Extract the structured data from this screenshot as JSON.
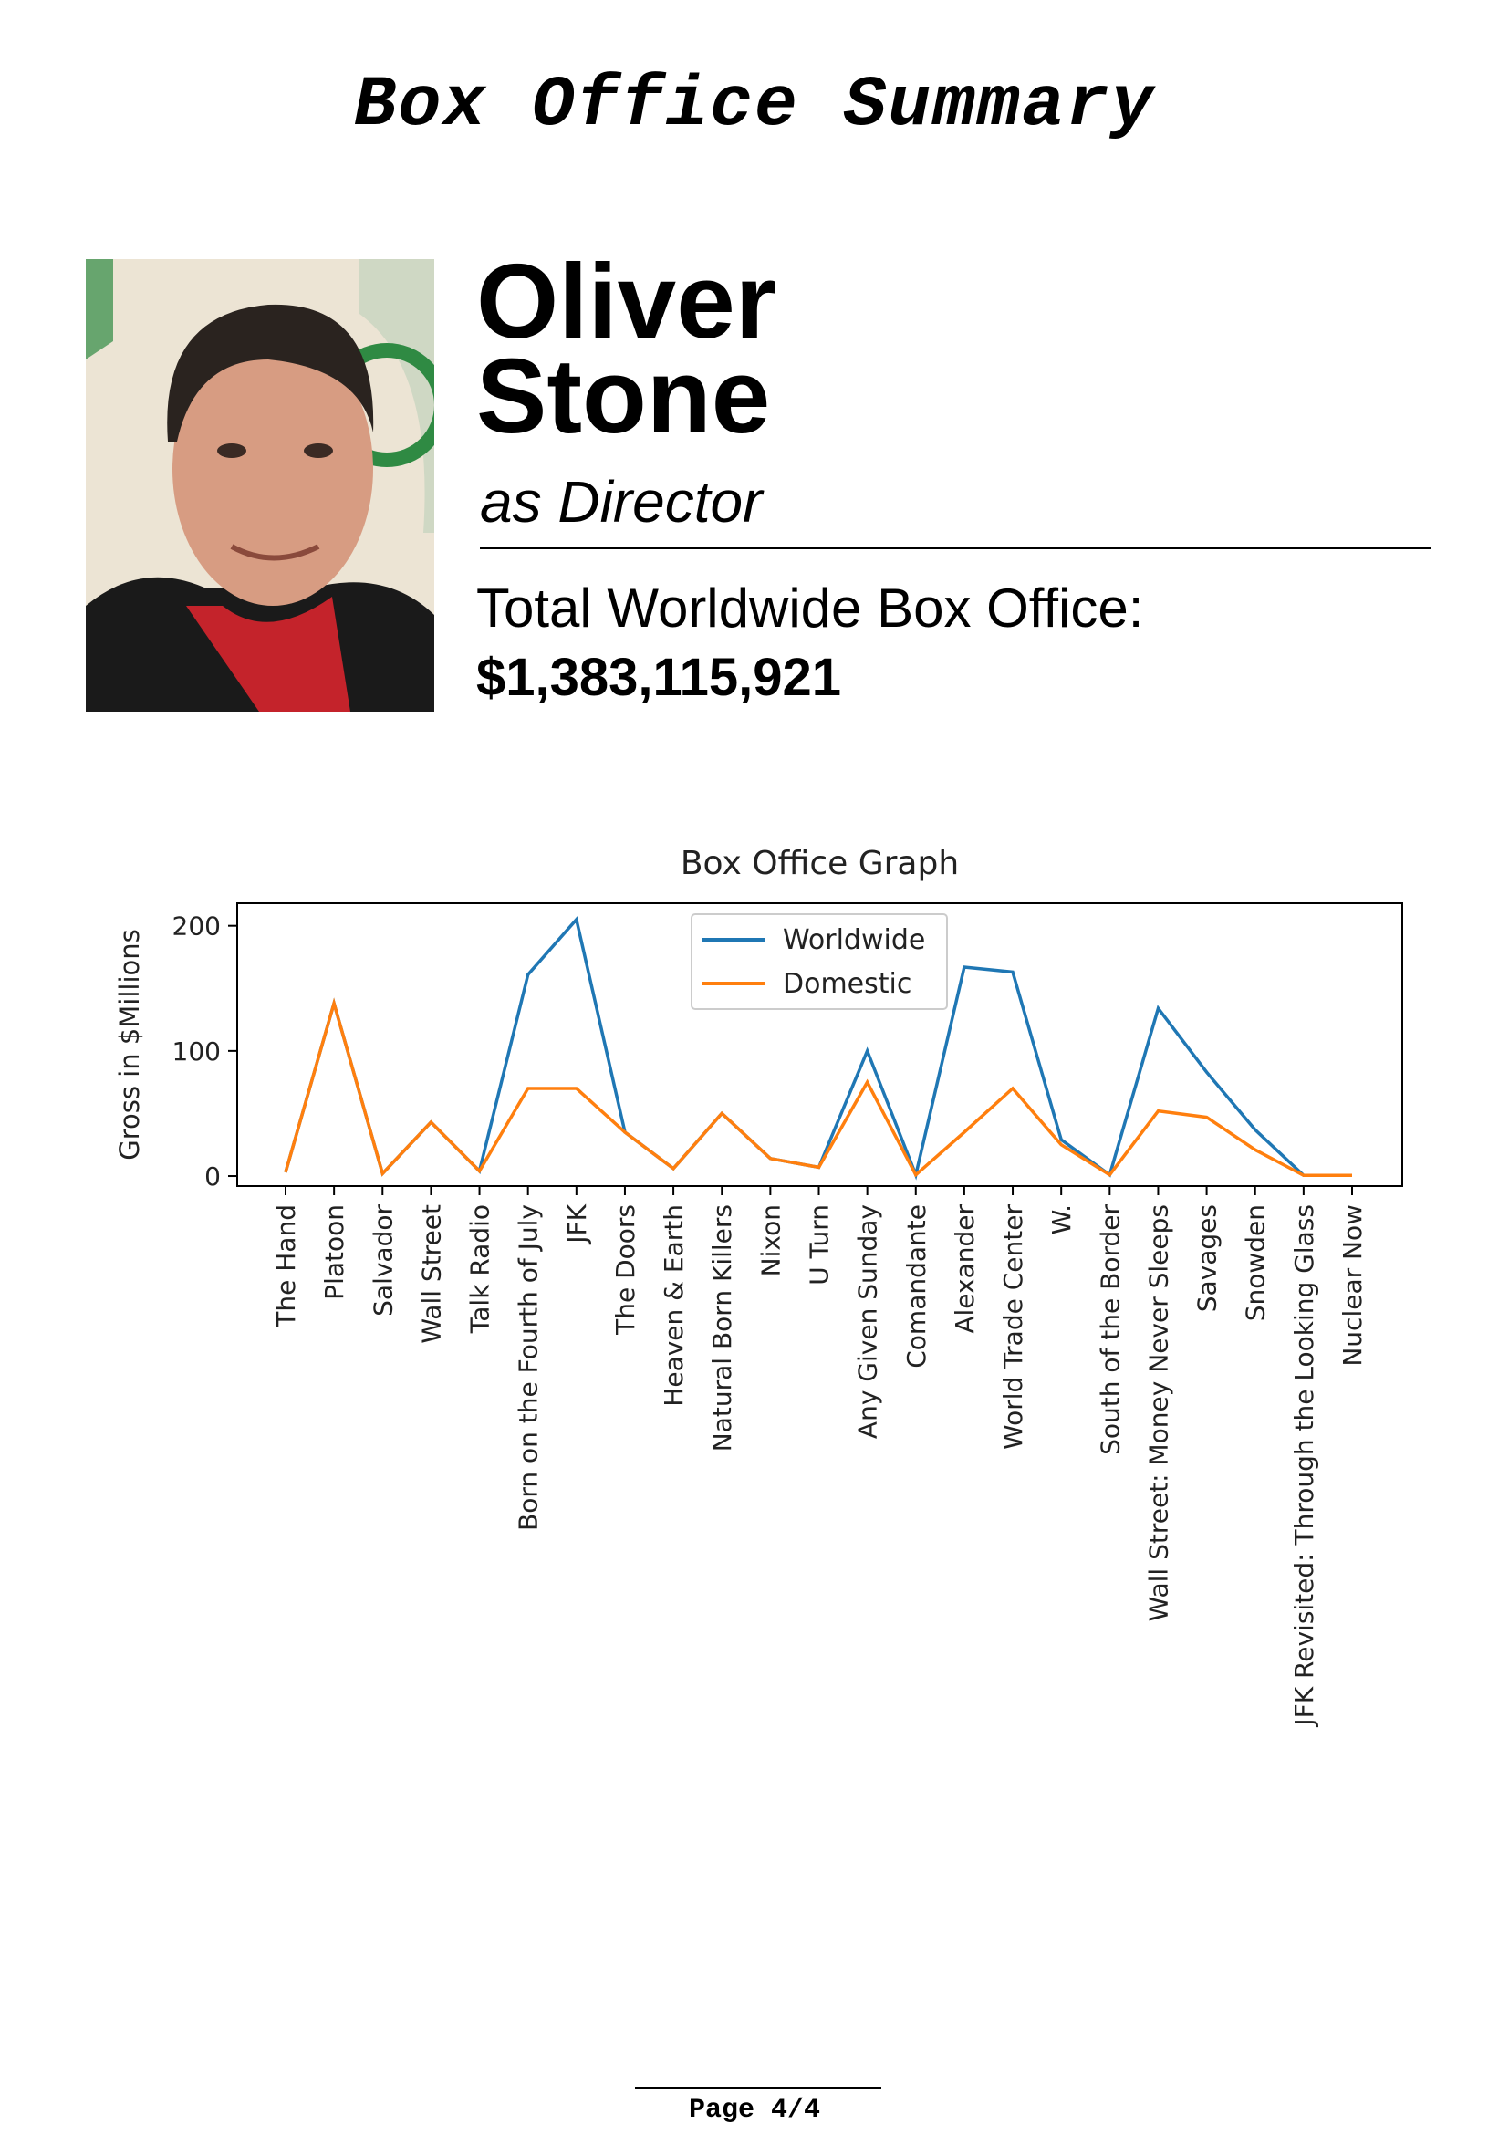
{
  "header": {
    "title": "Box Office Summary"
  },
  "person": {
    "first_name": "Oliver",
    "last_name": "Stone",
    "role": "as Director",
    "photo_icon": "portrait-photo"
  },
  "totals": {
    "label": "Total Worldwide Box Office:",
    "value": "$1,383,115,921"
  },
  "chart_data": {
    "type": "line",
    "title": "Box Office Graph",
    "xlabel": "",
    "ylabel": "Gross in $Millions",
    "ylim": [
      -8,
      218
    ],
    "yticks": [
      0,
      100,
      200
    ],
    "grid": false,
    "legend_position": "top-center",
    "categories": [
      "The Hand",
      "Platoon",
      "Salvador",
      "Wall Street",
      "Talk Radio",
      "Born on the Fourth of July",
      "JFK",
      "The Doors",
      "Heaven & Earth",
      "Natural Born Killers",
      "Nixon",
      "U Turn",
      "Any Given Sunday",
      "Comandante",
      "Alexander",
      "World Trade Center",
      "W.",
      "South of the Border",
      "Wall Street: Money Never Sleeps",
      "Savages",
      "Snowden",
      "JFK Revisited: Through the Looking Glass",
      "Nuclear Now"
    ],
    "series": [
      {
        "name": "Worldwide",
        "color": "#1f77b4",
        "values": [
          3,
          138,
          2,
          43,
          4,
          161,
          205,
          35,
          6,
          50,
          14,
          7,
          100,
          1,
          167,
          163,
          29,
          1,
          134,
          83,
          37,
          0.5,
          0.5
        ]
      },
      {
        "name": "Domestic",
        "color": "#ff7f0e",
        "values": [
          3,
          138,
          2,
          43,
          4,
          70,
          70,
          35,
          6,
          50,
          14,
          7,
          75,
          1,
          35,
          70,
          25,
          1,
          52,
          47,
          21,
          0.5,
          0.5
        ]
      }
    ]
  },
  "footer": {
    "page": "Page 4/4"
  }
}
